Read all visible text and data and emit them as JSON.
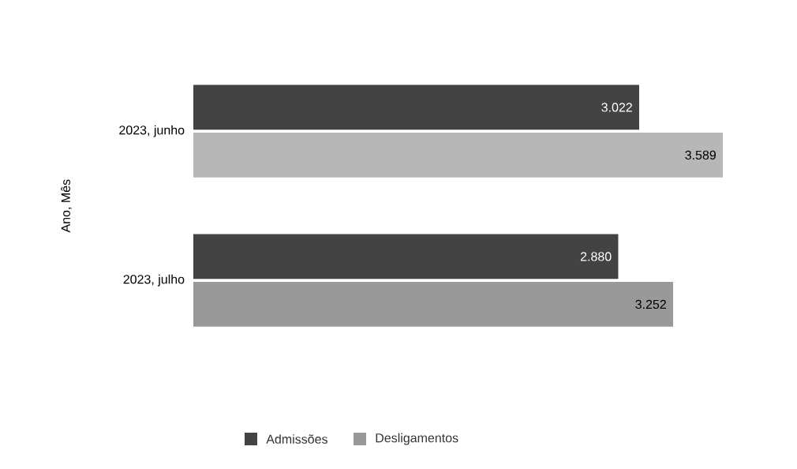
{
  "chart_data": {
    "type": "bar",
    "orientation": "horizontal",
    "ylabel": "Ano, Mês",
    "categories": [
      "2023, junho",
      "2023, julho"
    ],
    "tick_labels": "y",
    "legend": "bottom",
    "series": [
      {
        "name": "Admissões",
        "color": "#434343",
        "values": [
          3022,
          2880
        ],
        "value_labels": [
          "3.022",
          "2.880"
        ]
      },
      {
        "name": "Desligamentos",
        "color": "#999999",
        "colors": [
          "#b7b7b7",
          "#999999"
        ],
        "values": [
          3589,
          3252
        ],
        "value_labels": [
          "3.589",
          "3.252"
        ]
      }
    ]
  }
}
